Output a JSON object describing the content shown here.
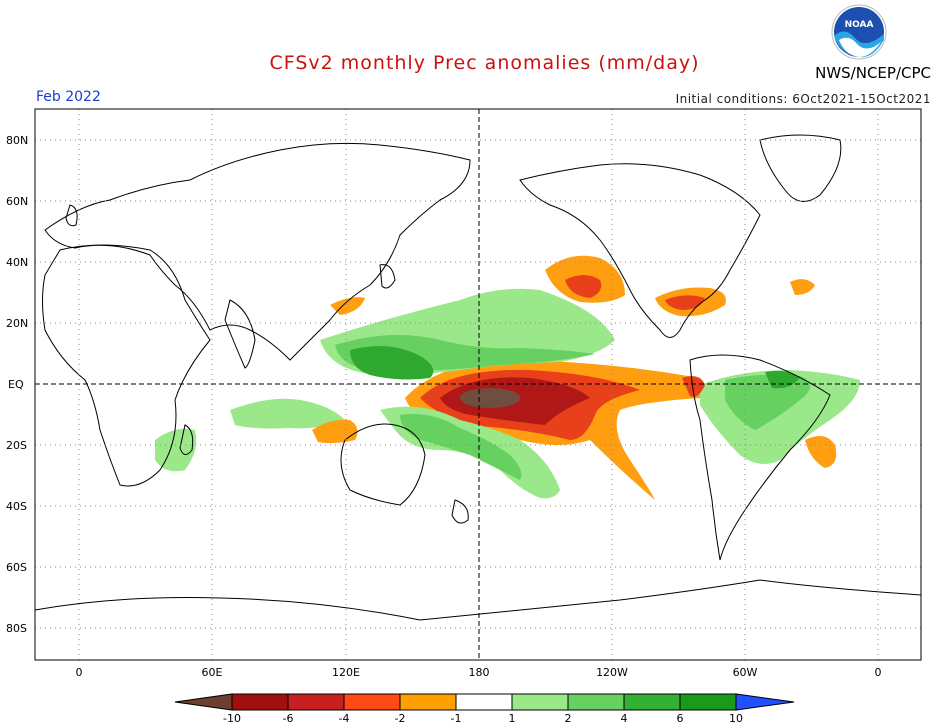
{
  "title": "CFSv2 monthly Prec anomalies (mm/day)",
  "agency": "NWS/NCEP/CPC",
  "logo_text": "NOAA",
  "month": "Feb 2022",
  "initial_conditions": "Initial conditions: 6Oct2021-15Oct2021",
  "lat_labels": [
    "80N",
    "60N",
    "40N",
    "20N",
    "EQ",
    "20S",
    "40S",
    "60S",
    "80S"
  ],
  "lon_labels": [
    "0",
    "60E",
    "120E",
    "180",
    "120W",
    "60W",
    "0"
  ],
  "colorbar": {
    "labels": [
      "-10",
      "-6",
      "-4",
      "-2",
      "-1",
      "1",
      "2",
      "4",
      "6",
      "10"
    ],
    "colors": [
      "#6e3f2e",
      "#a01010",
      "#c82020",
      "#ff4a16",
      "#ffa000",
      "#ffffff",
      "#9ae88a",
      "#66d060",
      "#33b033",
      "#1a9a1a",
      "#2050ff"
    ]
  },
  "anomaly_colors": {
    "dry_extreme": "#6e4e3e",
    "dry_strong": "#b01818",
    "dry_moderate": "#e8401a",
    "dry_weak": "#ff9e10",
    "wet_weak": "#9ae88a",
    "wet_moderate": "#66d060",
    "wet_strong": "#2ea82e"
  }
}
